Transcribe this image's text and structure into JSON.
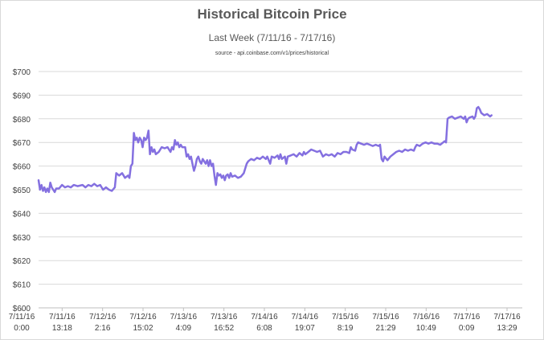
{
  "chart_data": {
    "type": "line",
    "title": "Historical Bitcoin Price",
    "subtitle": "Last Week (7/11/16 - 7/17/16)",
    "source": "source - api.coinbase.com/v1/prices/historical",
    "ylim": [
      600,
      700
    ],
    "y_ticks": [
      "$700",
      "$690",
      "$680",
      "$670",
      "$660",
      "$650",
      "$640",
      "$630",
      "$620",
      "$610",
      "$600"
    ],
    "x_tick_labels": [
      [
        "7/11/16",
        "0:00"
      ],
      [
        "7/11/16",
        "13:18"
      ],
      [
        "7/12/16",
        "2:16"
      ],
      [
        "7/12/16",
        "15:02"
      ],
      [
        "7/13/16",
        "4:09"
      ],
      [
        "7/13/16",
        "16:52"
      ],
      [
        "7/14/16",
        "6:08"
      ],
      [
        "7/14/16",
        "19:07"
      ],
      [
        "7/15/16",
        "8:19"
      ],
      [
        "7/15/16",
        "21:29"
      ],
      [
        "7/16/16",
        "10:49"
      ],
      [
        "7/17/16",
        "0:09"
      ],
      [
        "7/17/16",
        "13:29"
      ]
    ],
    "x_range_hours": [
      0,
      165
    ],
    "gridlines": true,
    "series": [
      {
        "color": "#8470e0",
        "points": [
          [
            0.0,
            654
          ],
          [
            0.5,
            650
          ],
          [
            1.0,
            652
          ],
          [
            1.5,
            649.5
          ],
          [
            2.0,
            651
          ],
          [
            2.5,
            649
          ],
          [
            3.0,
            650.5
          ],
          [
            3.5,
            649
          ],
          [
            4.0,
            653
          ],
          [
            4.5,
            651
          ],
          [
            5.0,
            650
          ],
          [
            5.5,
            649
          ],
          [
            6.0,
            650.5
          ],
          [
            7.0,
            650.5
          ],
          [
            8.0,
            652
          ],
          [
            9.0,
            651
          ],
          [
            10.0,
            651.5
          ],
          [
            11.0,
            651
          ],
          [
            12.0,
            652
          ],
          [
            13.3,
            651.5
          ],
          [
            15.0,
            652
          ],
          [
            16.0,
            651
          ],
          [
            17.0,
            652
          ],
          [
            18.0,
            651.5
          ],
          [
            19.0,
            652.5
          ],
          [
            20.0,
            651.5
          ],
          [
            21.0,
            652
          ],
          [
            22.0,
            650
          ],
          [
            23.0,
            651
          ],
          [
            24.0,
            650
          ],
          [
            25.0,
            649.5
          ],
          [
            26.0,
            651
          ],
          [
            26.5,
            657
          ],
          [
            27.5,
            656
          ],
          [
            28.5,
            657
          ],
          [
            29.5,
            655
          ],
          [
            30.5,
            656
          ],
          [
            31.0,
            655
          ],
          [
            31.5,
            660
          ],
          [
            32.0,
            661
          ],
          [
            32.5,
            674
          ],
          [
            33.0,
            671
          ],
          [
            33.5,
            672
          ],
          [
            34.0,
            670
          ],
          [
            34.5,
            672
          ],
          [
            35.0,
            671
          ],
          [
            35.5,
            668
          ],
          [
            36.0,
            672
          ],
          [
            36.5,
            671
          ],
          [
            37.0,
            672
          ],
          [
            37.5,
            675
          ],
          [
            38.0,
            665
          ],
          [
            38.5,
            668
          ],
          [
            39.0,
            666
          ],
          [
            39.5,
            667
          ],
          [
            40.0,
            665
          ],
          [
            41.0,
            666
          ],
          [
            42.0,
            668
          ],
          [
            43.0,
            667.5
          ],
          [
            44.0,
            668
          ],
          [
            45.0,
            666
          ],
          [
            45.5,
            668
          ],
          [
            46.0,
            667
          ],
          [
            46.5,
            671
          ],
          [
            47.0,
            669
          ],
          [
            47.5,
            670
          ],
          [
            48.0,
            668
          ],
          [
            48.5,
            669
          ],
          [
            49.0,
            668
          ],
          [
            50.0,
            668
          ],
          [
            50.5,
            664
          ],
          [
            51.0,
            665
          ],
          [
            51.5,
            663
          ],
          [
            52.0,
            664
          ],
          [
            52.5,
            661
          ],
          [
            53.0,
            658
          ],
          [
            53.5,
            660
          ],
          [
            54.0,
            663
          ],
          [
            54.5,
            664
          ],
          [
            55.0,
            662
          ],
          [
            55.5,
            661
          ],
          [
            56.0,
            663
          ],
          [
            56.5,
            662
          ],
          [
            57.0,
            661
          ],
          [
            57.5,
            662.5
          ],
          [
            58.0,
            660
          ],
          [
            58.5,
            662.5
          ],
          [
            59.0,
            660
          ],
          [
            59.5,
            661
          ],
          [
            60.0,
            656
          ],
          [
            60.5,
            652
          ],
          [
            61.0,
            657
          ],
          [
            61.5,
            656
          ],
          [
            62.0,
            656.5
          ],
          [
            62.5,
            655
          ],
          [
            63.0,
            656
          ],
          [
            63.5,
            654
          ],
          [
            64.0,
            656
          ],
          [
            64.5,
            656.5
          ],
          [
            65.0,
            655
          ],
          [
            65.5,
            657
          ],
          [
            66.0,
            655.5
          ],
          [
            67.0,
            656
          ],
          [
            68.0,
            655
          ],
          [
            69.0,
            655.5
          ],
          [
            70.0,
            657
          ],
          [
            71.0,
            661
          ],
          [
            71.5,
            662
          ],
          [
            72.5,
            663
          ],
          [
            73.5,
            662.5
          ],
          [
            74.5,
            663.5
          ],
          [
            75.5,
            663
          ],
          [
            76.5,
            664
          ],
          [
            77.5,
            663
          ],
          [
            78.0,
            664
          ],
          [
            79.0,
            661
          ],
          [
            79.5,
            664
          ],
          [
            80.5,
            663.5
          ],
          [
            81.5,
            664.5
          ],
          [
            82.0,
            663
          ],
          [
            82.5,
            665
          ],
          [
            83.0,
            663
          ],
          [
            84.0,
            664
          ],
          [
            84.5,
            661
          ],
          [
            85.0,
            664
          ],
          [
            86.0,
            664.5
          ],
          [
            87.0,
            665
          ],
          [
            88.0,
            664
          ],
          [
            89.0,
            665.5
          ],
          [
            90.0,
            664.5
          ],
          [
            90.5,
            666
          ],
          [
            91.0,
            665
          ],
          [
            92.0,
            666
          ],
          [
            93.0,
            667
          ],
          [
            94.0,
            666.5
          ],
          [
            95.0,
            666
          ],
          [
            96.0,
            666.5
          ],
          [
            97.0,
            664
          ],
          [
            98.0,
            665
          ],
          [
            99.0,
            664.5
          ],
          [
            100.0,
            665
          ],
          [
            101.0,
            664
          ],
          [
            102.0,
            665.5
          ],
          [
            103.0,
            665
          ],
          [
            104.0,
            666
          ],
          [
            105.0,
            666
          ],
          [
            106.0,
            665.5
          ],
          [
            106.5,
            668
          ],
          [
            107.0,
            667
          ],
          [
            108.0,
            666.5
          ],
          [
            108.5,
            669
          ],
          [
            109.0,
            670
          ],
          [
            110.0,
            669.5
          ],
          [
            111.0,
            669
          ],
          [
            112.0,
            669.5
          ],
          [
            113.0,
            669
          ],
          [
            114.0,
            668.5
          ],
          [
            115.0,
            669
          ],
          [
            116.0,
            668.5
          ],
          [
            116.5,
            669
          ],
          [
            117.0,
            663
          ],
          [
            117.5,
            662
          ],
          [
            118.0,
            664
          ],
          [
            119.0,
            662.5
          ],
          [
            120.0,
            664
          ],
          [
            121.0,
            665
          ],
          [
            122.0,
            666
          ],
          [
            123.0,
            666.5
          ],
          [
            124.0,
            666
          ],
          [
            125.0,
            667
          ],
          [
            126.0,
            666.5
          ],
          [
            127.0,
            667
          ],
          [
            128.0,
            666.5
          ],
          [
            128.5,
            668
          ],
          [
            129.0,
            669
          ],
          [
            130.0,
            668.5
          ],
          [
            131.0,
            669.5
          ],
          [
            132.0,
            670
          ],
          [
            133.0,
            669.5
          ],
          [
            134.0,
            670
          ],
          [
            135.0,
            669.5
          ],
          [
            136.0,
            669.5
          ],
          [
            137.0,
            669
          ],
          [
            138.0,
            670
          ],
          [
            138.5,
            670.5
          ],
          [
            139.0,
            670
          ],
          [
            139.5,
            680
          ],
          [
            140.0,
            680.5
          ],
          [
            141.0,
            681
          ],
          [
            142.0,
            680
          ],
          [
            143.0,
            680.5
          ],
          [
            144.0,
            681
          ],
          [
            145.0,
            680
          ],
          [
            145.5,
            681
          ],
          [
            146.0,
            678.5
          ],
          [
            146.5,
            680
          ],
          [
            147.0,
            680.5
          ],
          [
            148.0,
            681
          ],
          [
            148.5,
            680
          ],
          [
            149.0,
            681
          ],
          [
            149.5,
            684.5
          ],
          [
            150.0,
            685
          ],
          [
            150.5,
            684
          ],
          [
            151.0,
            682.5
          ],
          [
            152.0,
            681.5
          ],
          [
            153.0,
            682
          ],
          [
            154.0,
            681
          ],
          [
            154.5,
            681.5
          ]
        ]
      }
    ]
  }
}
